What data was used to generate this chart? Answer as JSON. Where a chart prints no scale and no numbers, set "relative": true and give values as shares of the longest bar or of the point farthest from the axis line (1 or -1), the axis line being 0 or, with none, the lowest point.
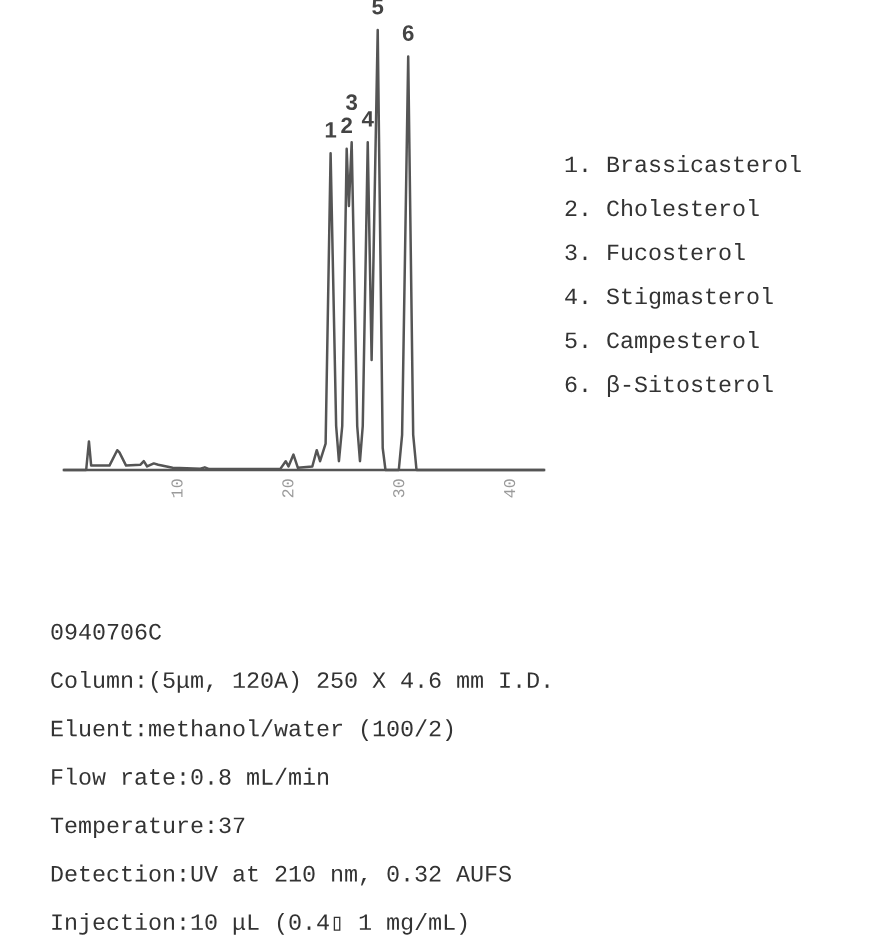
{
  "chart_data": {
    "type": "line",
    "relative": true,
    "color": "#555555",
    "x": [
      -0.3,
      1.7,
      1.95,
      2.15,
      3.8,
      4.5,
      4.7,
      5.3,
      6.6,
      6.9,
      7.2,
      7.8,
      8.2,
      9.5,
      12.0,
      12.4,
      12.8,
      19.2,
      19.7,
      19.95,
      20.4,
      20.8,
      22.1,
      22.5,
      22.8,
      23.3,
      23.75,
      24.25,
      24.5,
      24.8,
      25.2,
      25.4,
      25.65,
      26.15,
      26.4,
      26.65,
      27.1,
      27.45,
      28.0,
      28.45,
      28.7,
      29.9,
      30.2,
      30.75,
      31.2,
      31.5,
      43.0
    ],
    "values": [
      0,
      0,
      0.065,
      0.01,
      0.01,
      0.045,
      0.04,
      0.01,
      0.012,
      0.02,
      0.008,
      0.015,
      0.012,
      0.005,
      0.003,
      0.006,
      0.002,
      0.002,
      0.02,
      0.008,
      0.035,
      0.005,
      0.008,
      0.045,
      0.02,
      0.06,
      0.72,
      0.1,
      0.02,
      0.1,
      0.73,
      0.6,
      0.745,
      0.1,
      0.02,
      0.1,
      0.745,
      0.25,
      1.0,
      0.05,
      0,
      0,
      0.08,
      0.94,
      0.08,
      0,
      0
    ],
    "xlim": [
      -0.3,
      43.0
    ],
    "xticks": [
      10,
      20,
      30,
      40
    ],
    "annotations": [
      {
        "text": "1",
        "x": 23.75,
        "y": 0.72
      },
      {
        "text": "2",
        "x": 25.2,
        "y": 0.73
      },
      {
        "text": "3",
        "x": 25.65,
        "y": 0.745
      },
      {
        "text": "4",
        "x": 27.1,
        "y": 0.745
      },
      {
        "text": "5",
        "x": 28.0,
        "y": 1.0
      },
      {
        "text": "6",
        "x": 30.75,
        "y": 0.94
      },
      "1. Brassicasterol",
      "2. Cholesterol",
      "3. Fucosterol",
      "4. Stigmasterol",
      "5. Campesterol",
      "6. β-Sitosterol",
      "0940706C",
      "Column:(5μm, 120A) 250 X 4.6 mm I.D.",
      "Eluent:methanol/water (100/2)",
      "Flow rate:0.8 mL/min",
      "Temperature:37",
      "Detection:UV at 210 nm, 0.32 AUFS",
      "Injection:10 μL (0.4▯ 1 mg/mL)"
    ]
  }
}
